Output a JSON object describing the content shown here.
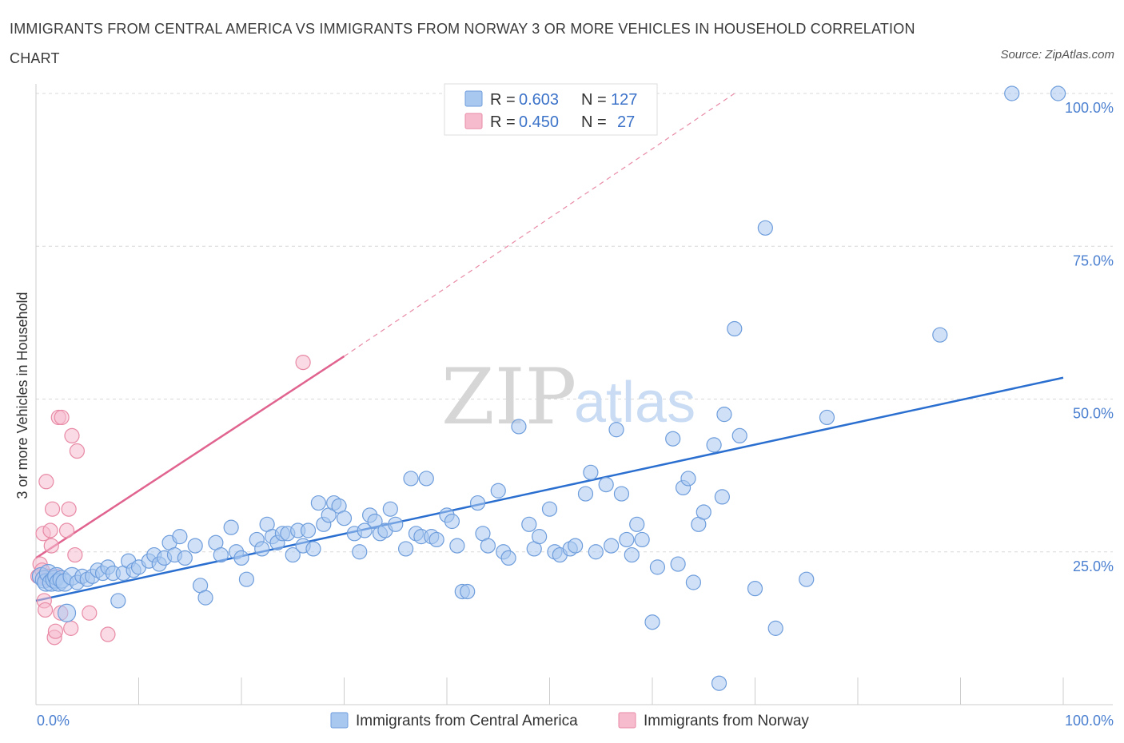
{
  "title": "IMMIGRANTS FROM CENTRAL AMERICA VS IMMIGRANTS FROM NORWAY 3 OR MORE VEHICLES IN HOUSEHOLD CORRELATION CHART",
  "source": "Source: ZipAtlas.com",
  "watermark": {
    "zip": "ZIP",
    "atlas": "atlas"
  },
  "chart_data": {
    "type": "scatter",
    "ylabel": "3 or more Vehicles in Household",
    "xlim": [
      0,
      100
    ],
    "ylim": [
      0,
      100
    ],
    "x_tick_labels": [
      "0.0%",
      "100.0%"
    ],
    "y_tick_labels": [
      "25.0%",
      "50.0%",
      "75.0%",
      "100.0%"
    ],
    "y_ticks": [
      25,
      50,
      75,
      100
    ],
    "grid": true,
    "legend_top": [
      {
        "r_label": "R =",
        "r_value": "0.603",
        "n_label": "N =",
        "n_value": "127"
      },
      {
        "r_label": "R =",
        "r_value": "0.450",
        "n_label": "N =",
        "n_value": "27"
      }
    ],
    "series": [
      {
        "name": "Immigrants from Central America",
        "color": "#a9c8f0",
        "stroke": "#6e9ddc",
        "line_color": "#2a6fd0",
        "trend": {
          "x": [
            0,
            100
          ],
          "y": [
            17.0,
            53.5
          ]
        },
        "points": [
          [
            0.5,
            21
          ],
          [
            0.8,
            20.5
          ],
          [
            1.0,
            20
          ],
          [
            1.2,
            21.5
          ],
          [
            1.5,
            20
          ],
          [
            1.8,
            20.5
          ],
          [
            2.0,
            21
          ],
          [
            2.2,
            20
          ],
          [
            2.5,
            20.5
          ],
          [
            2.8,
            20
          ],
          [
            3.0,
            15
          ],
          [
            3.5,
            21
          ],
          [
            4.0,
            20
          ],
          [
            4.5,
            21
          ],
          [
            5.0,
            20.5
          ],
          [
            5.5,
            21
          ],
          [
            6.0,
            22
          ],
          [
            6.5,
            21.5
          ],
          [
            7.0,
            22.5
          ],
          [
            7.5,
            21.5
          ],
          [
            8.0,
            17
          ],
          [
            8.5,
            21.5
          ],
          [
            9.0,
            23.5
          ],
          [
            9.5,
            22
          ],
          [
            10.0,
            22.5
          ],
          [
            11.0,
            23.5
          ],
          [
            11.5,
            24.5
          ],
          [
            12.0,
            23
          ],
          [
            12.5,
            24
          ],
          [
            13.0,
            26.5
          ],
          [
            13.5,
            24.5
          ],
          [
            14.0,
            27.5
          ],
          [
            14.5,
            24
          ],
          [
            15.5,
            26
          ],
          [
            16.0,
            19.5
          ],
          [
            16.5,
            17.5
          ],
          [
            17.5,
            26.5
          ],
          [
            18.0,
            24.5
          ],
          [
            19.0,
            29
          ],
          [
            19.5,
            25
          ],
          [
            20.0,
            24
          ],
          [
            20.5,
            20.5
          ],
          [
            21.5,
            27
          ],
          [
            22.0,
            25.5
          ],
          [
            22.5,
            29.5
          ],
          [
            23.0,
            27.5
          ],
          [
            23.5,
            26.5
          ],
          [
            24.0,
            28
          ],
          [
            24.5,
            28
          ],
          [
            25.0,
            24.5
          ],
          [
            25.5,
            28.5
          ],
          [
            26.0,
            26
          ],
          [
            26.5,
            28.5
          ],
          [
            27.0,
            25.5
          ],
          [
            27.5,
            33
          ],
          [
            28.0,
            29.5
          ],
          [
            28.5,
            31
          ],
          [
            29.0,
            33
          ],
          [
            29.5,
            32.5
          ],
          [
            30.0,
            30.5
          ],
          [
            31.0,
            28
          ],
          [
            31.5,
            25
          ],
          [
            32.0,
            28.5
          ],
          [
            32.5,
            31
          ],
          [
            33.0,
            30
          ],
          [
            33.5,
            28
          ],
          [
            34.0,
            28.5
          ],
          [
            34.5,
            32
          ],
          [
            35.0,
            29.5
          ],
          [
            36.0,
            25.5
          ],
          [
            36.5,
            37
          ],
          [
            37.0,
            28
          ],
          [
            37.5,
            27.5
          ],
          [
            38.0,
            37
          ],
          [
            38.5,
            27.5
          ],
          [
            39.0,
            27
          ],
          [
            40.0,
            31
          ],
          [
            40.5,
            30
          ],
          [
            41.0,
            26
          ],
          [
            41.5,
            18.5
          ],
          [
            42.0,
            18.5
          ],
          [
            43.0,
            33
          ],
          [
            43.5,
            28
          ],
          [
            44.0,
            26
          ],
          [
            45.0,
            35
          ],
          [
            45.5,
            25
          ],
          [
            46.0,
            24
          ],
          [
            47.0,
            45.5
          ],
          [
            48.0,
            29.5
          ],
          [
            48.5,
            25.5
          ],
          [
            49.0,
            27.5
          ],
          [
            50.0,
            32
          ],
          [
            50.5,
            25
          ],
          [
            51.0,
            24.5
          ],
          [
            52.0,
            25.5
          ],
          [
            52.5,
            26
          ],
          [
            53.5,
            34.5
          ],
          [
            54.0,
            38
          ],
          [
            54.5,
            25
          ],
          [
            55.5,
            36
          ],
          [
            56.0,
            26
          ],
          [
            56.5,
            45
          ],
          [
            57.0,
            34.5
          ],
          [
            57.5,
            27
          ],
          [
            58.0,
            24.5
          ],
          [
            58.5,
            29.5
          ],
          [
            59.0,
            27
          ],
          [
            60.0,
            13.5
          ],
          [
            60.5,
            22.5
          ],
          [
            62.0,
            43.5
          ],
          [
            62.5,
            23
          ],
          [
            63.0,
            35.5
          ],
          [
            63.5,
            37
          ],
          [
            64.0,
            20
          ],
          [
            64.5,
            29.5
          ],
          [
            65.0,
            31.5
          ],
          [
            66.0,
            42.5
          ],
          [
            66.5,
            3.5
          ],
          [
            66.8,
            34
          ],
          [
            67.0,
            47.5
          ],
          [
            68.0,
            61.5
          ],
          [
            68.5,
            44
          ],
          [
            70.0,
            19
          ],
          [
            71.0,
            78
          ],
          [
            72.0,
            12.5
          ],
          [
            75.0,
            20.5
          ],
          [
            77.0,
            47
          ],
          [
            88.0,
            60.5
          ],
          [
            95.0,
            100
          ],
          [
            99.5,
            100
          ]
        ]
      },
      {
        "name": "Immigrants from Norway",
        "color": "#f6bccd",
        "stroke": "#e88aa6",
        "line_color": "#e0648f",
        "trend": {
          "x": [
            0,
            30
          ],
          "y": [
            24.0,
            57.0
          ]
        },
        "trend_dashed": {
          "x": [
            30,
            68
          ],
          "y": [
            57.0,
            100
          ]
        },
        "points": [
          [
            0.2,
            21
          ],
          [
            0.4,
            23
          ],
          [
            0.6,
            22
          ],
          [
            0.7,
            28
          ],
          [
            0.8,
            17
          ],
          [
            0.9,
            15.5
          ],
          [
            1.0,
            36.5
          ],
          [
            1.2,
            21
          ],
          [
            1.4,
            28.5
          ],
          [
            1.5,
            26
          ],
          [
            1.6,
            32
          ],
          [
            1.8,
            11
          ],
          [
            1.9,
            12
          ],
          [
            2.0,
            21
          ],
          [
            2.2,
            47
          ],
          [
            2.4,
            15
          ],
          [
            2.5,
            47
          ],
          [
            3.0,
            28.5
          ],
          [
            3.2,
            32
          ],
          [
            3.4,
            12.5
          ],
          [
            3.5,
            44
          ],
          [
            3.8,
            24.5
          ],
          [
            4.0,
            41.5
          ],
          [
            5.2,
            15
          ],
          [
            7.0,
            11.5
          ],
          [
            26.0,
            56
          ],
          [
            1.1,
            20.5
          ]
        ]
      }
    ]
  }
}
